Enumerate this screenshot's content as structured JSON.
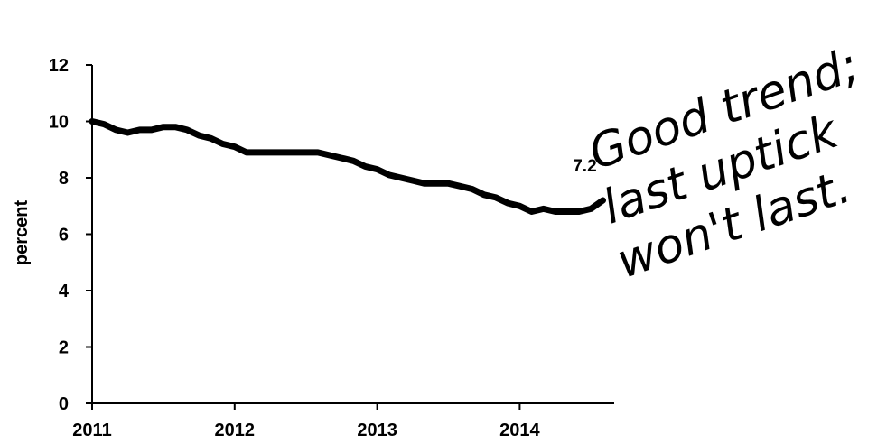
{
  "chart_data": {
    "type": "line",
    "ylabel": "percent",
    "xlabel": "",
    "x_ticks": [
      "2011",
      "2012",
      "2013",
      "2014"
    ],
    "y_ticks": [
      "0",
      "2",
      "4",
      "6",
      "8",
      "10",
      "12"
    ],
    "ylim": [
      0,
      12
    ],
    "xlim": [
      "2011-01",
      "2014-08"
    ],
    "grid": false,
    "series": [
      {
        "x": [
          "2011-01",
          "2011-02",
          "2011-03",
          "2011-04",
          "2011-05",
          "2011-06",
          "2011-07",
          "2011-08",
          "2011-09",
          "2011-10",
          "2011-11",
          "2011-12",
          "2012-01",
          "2012-02",
          "2012-03",
          "2012-04",
          "2012-05",
          "2012-06",
          "2012-07",
          "2012-08",
          "2012-09",
          "2012-10",
          "2012-11",
          "2012-12",
          "2013-01",
          "2013-02",
          "2013-03",
          "2013-04",
          "2013-05",
          "2013-06",
          "2013-07",
          "2013-08",
          "2013-09",
          "2013-10",
          "2013-11",
          "2013-12",
          "2014-01",
          "2014-02",
          "2014-03",
          "2014-04",
          "2014-05",
          "2014-06",
          "2014-07",
          "2014-08"
        ],
        "values": [
          10.0,
          9.9,
          9.7,
          9.6,
          9.7,
          9.7,
          9.8,
          9.8,
          9.7,
          9.5,
          9.4,
          9.2,
          9.1,
          8.9,
          8.9,
          8.9,
          8.9,
          8.9,
          8.9,
          8.9,
          8.8,
          8.7,
          8.6,
          8.4,
          8.3,
          8.1,
          8.0,
          7.9,
          7.8,
          7.8,
          7.8,
          7.7,
          7.6,
          7.4,
          7.3,
          7.1,
          7.0,
          6.8,
          6.9,
          6.8,
          6.8,
          6.8,
          6.9,
          7.2
        ]
      }
    ],
    "end_label": "7.2",
    "annotation": [
      "Good trend;",
      "last uptick",
      "won't last."
    ]
  },
  "style": {
    "line_color": "#000000",
    "axis_color": "#000000"
  }
}
